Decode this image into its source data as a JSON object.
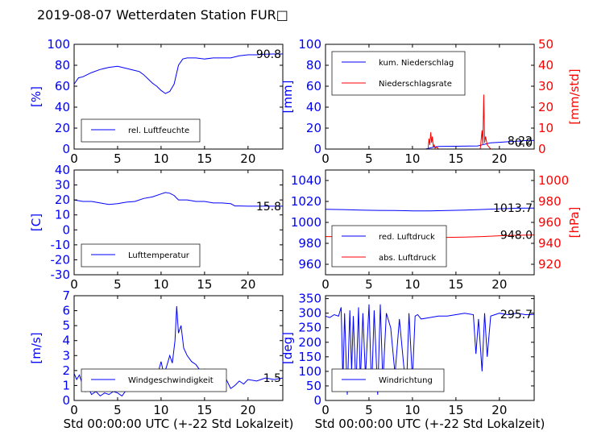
{
  "figure_title": "2019-08-07 Wetterdaten Station FUR□",
  "xlabel": "Std 00:00:00 UTC (+-22 Std Lokalzeit)",
  "colors": {
    "primary": "#0000ff",
    "secondary": "#ff0000",
    "axis": "#000000"
  },
  "chart_data": [
    {
      "type": "line",
      "id": "humidity",
      "ylabel": "[%]",
      "xlim": [
        0,
        24
      ],
      "ylim": [
        0,
        100
      ],
      "xticks": [
        0,
        5,
        10,
        15,
        20
      ],
      "yticks": [
        0,
        20,
        40,
        60,
        80,
        100
      ],
      "last_value": "90.8",
      "legend": {
        "placement": "lower-left",
        "entries": [
          "rel. Luftfeuchte"
        ]
      },
      "series": [
        {
          "name": "rel. Luftfeuchte",
          "color": "#0000ff",
          "x": [
            0,
            0.5,
            1,
            1.5,
            2,
            3,
            4,
            5,
            6,
            7,
            7.5,
            8,
            8.5,
            9,
            9.5,
            10,
            10.5,
            11,
            11.5,
            12,
            12.5,
            13,
            14,
            15,
            16,
            17,
            18,
            19,
            20,
            21,
            22,
            23,
            24
          ],
          "y": [
            62,
            68,
            69,
            71,
            73,
            76,
            78,
            79,
            77,
            75,
            74,
            71,
            67,
            63,
            60,
            56,
            53,
            55,
            62,
            80,
            86,
            87,
            87,
            86,
            87,
            87,
            87,
            89,
            90,
            90,
            90.5,
            90.8,
            90.8
          ]
        }
      ]
    },
    {
      "type": "line",
      "id": "precipitation",
      "ylabel": "[mm]",
      "ylabel_right": "[mm/std]",
      "xlim": [
        0,
        24
      ],
      "ylim": [
        0,
        100
      ],
      "ylim_right": [
        0,
        50
      ],
      "xticks": [
        0,
        5,
        10,
        15,
        20
      ],
      "yticks": [
        0,
        20,
        40,
        60,
        80,
        100
      ],
      "yticks_right": [
        0,
        10,
        20,
        30,
        40,
        50
      ],
      "last_value": "8.22",
      "last_value_right": "0.0",
      "legend": {
        "placement": "upper-left",
        "entries": [
          "kum. Niederschlag",
          "Niederschlagsrate"
        ]
      },
      "series": [
        {
          "name": "kum. Niederschlag",
          "color": "#0000ff",
          "axis": "left",
          "x": [
            0,
            11.5,
            12,
            12.5,
            13,
            17.5,
            18,
            18.5,
            19,
            20,
            21,
            22,
            23,
            24
          ],
          "y": [
            0,
            0,
            1,
            2,
            2.5,
            3,
            4,
            5,
            6,
            6.5,
            7,
            7.5,
            8.1,
            8.22
          ]
        },
        {
          "name": "Niederschlagsrate",
          "color": "#ff0000",
          "axis": "right",
          "x": [
            0,
            11.8,
            11.9,
            12,
            12.1,
            12.2,
            12.3,
            12.4,
            12.5,
            12.6,
            12.8,
            13,
            17.8,
            18,
            18.1,
            18.2,
            18.3,
            18.4,
            18.6,
            18.8,
            19,
            20,
            24
          ],
          "y": [
            0,
            0,
            5,
            2,
            8,
            3,
            6,
            1,
            2,
            0.5,
            1,
            0,
            0,
            9,
            2,
            26,
            3,
            6,
            2,
            1,
            0,
            0,
            0
          ]
        }
      ]
    },
    {
      "type": "line",
      "id": "temperature",
      "ylabel": "[C]",
      "xlim": [
        0,
        24
      ],
      "ylim": [
        -30,
        40
      ],
      "xticks": [
        0,
        5,
        10,
        15,
        20
      ],
      "yticks": [
        -30,
        -20,
        -10,
        0,
        10,
        20,
        30,
        40
      ],
      "last_value": "15.8",
      "legend": {
        "placement": "lower-left",
        "entries": [
          "Lufttemperatur"
        ]
      },
      "series": [
        {
          "name": "Lufttemperatur",
          "color": "#0000ff",
          "x": [
            0,
            1,
            2,
            3,
            4,
            5,
            6,
            7,
            8,
            9,
            10,
            10.5,
            11,
            11.5,
            12,
            13,
            14,
            15,
            16,
            17,
            18,
            18.5,
            19,
            20,
            21,
            22,
            23,
            24
          ],
          "y": [
            20,
            19,
            19,
            18,
            17,
            17.5,
            18.5,
            19,
            21,
            22,
            24,
            25,
            24.5,
            23,
            20,
            20,
            19,
            19,
            18,
            18,
            17.5,
            16,
            16,
            15.8,
            15.8,
            15.8,
            15.8,
            15.8
          ]
        }
      ]
    },
    {
      "type": "line",
      "id": "pressure",
      "ylabel_right": "[hPa]",
      "xlim": [
        0,
        24
      ],
      "ylim": [
        950,
        1050
      ],
      "ylim_right": [
        910,
        1010
      ],
      "xticks": [
        0,
        5,
        10,
        15,
        20
      ],
      "yticks": [
        960,
        980,
        1000,
        1020,
        1040
      ],
      "yticks_right": [
        920,
        940,
        960,
        980,
        1000
      ],
      "last_value": "1013.7",
      "last_value_right": "948.0",
      "legend": {
        "placement": "lower-left",
        "entries": [
          "red. Luftdruck",
          "abs. Luftdruck"
        ]
      },
      "series": [
        {
          "name": "red. Luftdruck",
          "color": "#0000ff",
          "axis": "left",
          "x": [
            0,
            2,
            4,
            6,
            8,
            10,
            12,
            14,
            16,
            18,
            20,
            22,
            24
          ],
          "y": [
            1012.5,
            1012.2,
            1011.8,
            1011.5,
            1011.3,
            1011.0,
            1011.0,
            1011.3,
            1011.8,
            1012.3,
            1013,
            1013.5,
            1013.7
          ]
        },
        {
          "name": "abs. Luftdruck",
          "color": "#ff0000",
          "axis": "right",
          "x": [
            0,
            2,
            4,
            6,
            8,
            10,
            12,
            14,
            16,
            18,
            20,
            22,
            24
          ],
          "y": [
            946.5,
            946.3,
            946.0,
            945.8,
            945.6,
            945.5,
            945.5,
            945.7,
            946.0,
            946.5,
            947.2,
            947.7,
            948.0
          ]
        }
      ]
    },
    {
      "type": "line",
      "id": "windspeed",
      "ylabel": "[m/s]",
      "xlim": [
        0,
        24
      ],
      "ylim": [
        0,
        7
      ],
      "xticks": [
        0,
        5,
        10,
        15,
        20
      ],
      "yticks": [
        0,
        1,
        2,
        3,
        4,
        5,
        6,
        7
      ],
      "last_value": "1.5",
      "legend": {
        "placement": "lower-left",
        "entries": [
          "Windgeschwindigkeit"
        ]
      },
      "series": [
        {
          "name": "Windgeschwindigkeit",
          "color": "#0000ff",
          "x": [
            0,
            0.3,
            0.6,
            1,
            1.3,
            1.6,
            2,
            2.5,
            3,
            3.5,
            4,
            4.5,
            5,
            5.5,
            6,
            6.5,
            7,
            7.5,
            8,
            8.5,
            9,
            9.5,
            10,
            10.3,
            10.6,
            11,
            11.3,
            11.6,
            11.8,
            12,
            12.3,
            12.6,
            13,
            13.5,
            14,
            14.5,
            15,
            15.5,
            16,
            16.5,
            17,
            17.5,
            18,
            18.5,
            19,
            19.5,
            20,
            21,
            22,
            23,
            24
          ],
          "y": [
            1.8,
            1.4,
            1.7,
            1.0,
            0.6,
            0.9,
            0.4,
            0.6,
            0.3,
            0.5,
            0.4,
            0.6,
            0.5,
            0.3,
            0.7,
            0.9,
            1.2,
            0.8,
            1.5,
            1.2,
            2.0,
            1.5,
            2.6,
            1.8,
            2.2,
            3.0,
            2.5,
            4.0,
            6.3,
            4.5,
            5.0,
            3.5,
            3.0,
            2.6,
            2.4,
            2.0,
            2.1,
            1.9,
            2.0,
            1.6,
            1.9,
            1.4,
            0.8,
            1.0,
            1.3,
            1.1,
            1.4,
            1.3,
            1.5,
            1.4,
            1.5
          ]
        }
      ]
    },
    {
      "type": "line",
      "id": "winddirection",
      "ylabel": "[deg]",
      "xlim": [
        0,
        24
      ],
      "ylim": [
        0,
        360
      ],
      "xticks": [
        0,
        5,
        10,
        15,
        20
      ],
      "yticks": [
        0,
        50,
        100,
        150,
        200,
        250,
        300,
        350
      ],
      "last_value": "295.7",
      "legend": {
        "placement": "lower-left",
        "entries": [
          "Windrichtung"
        ]
      },
      "series": [
        {
          "name": "Windrichtung",
          "color": "#0000ff",
          "x": [
            0,
            0.5,
            1,
            1.5,
            1.8,
            2,
            2.2,
            2.5,
            2.8,
            3,
            3.2,
            3.5,
            3.8,
            4,
            4.3,
            4.6,
            5,
            5.3,
            5.6,
            6,
            6.3,
            6.6,
            7,
            7.5,
            8,
            8.5,
            9,
            9.3,
            9.6,
            10,
            10.3,
            10.6,
            11,
            12,
            13,
            14,
            15,
            16,
            17,
            17.3,
            17.6,
            18,
            18.3,
            18.6,
            19,
            19.5,
            20,
            21,
            22,
            23,
            24
          ],
          "y": [
            290,
            285,
            295,
            290,
            320,
            60,
            300,
            20,
            310,
            100,
            290,
            40,
            320,
            60,
            300,
            80,
            330,
            30,
            310,
            20,
            330,
            60,
            300,
            250,
            90,
            280,
            120,
            30,
            300,
            70,
            290,
            295,
            280,
            285,
            290,
            290,
            295,
            300,
            295,
            160,
            280,
            100,
            300,
            150,
            290,
            295,
            300,
            295,
            300,
            295,
            295.7
          ]
        }
      ]
    }
  ]
}
